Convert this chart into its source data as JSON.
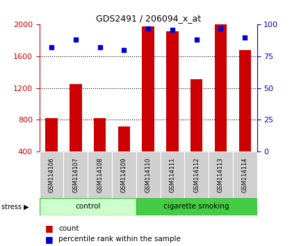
{
  "title": "GDS2491 / 206094_x_at",
  "samples": [
    "GSM114106",
    "GSM114107",
    "GSM114108",
    "GSM114109",
    "GSM114110",
    "GSM114111",
    "GSM114112",
    "GSM114113",
    "GSM114114"
  ],
  "counts": [
    820,
    1250,
    820,
    710,
    1980,
    1920,
    1310,
    2000,
    1680
  ],
  "percentiles": [
    82,
    88,
    82,
    80,
    97,
    96,
    88,
    97,
    90
  ],
  "groups": [
    {
      "label": "control",
      "start": 0,
      "end": 4,
      "color": "#ccffcc",
      "border": "#44bb44"
    },
    {
      "label": "cigarette smoking",
      "start": 4,
      "end": 9,
      "color": "#44cc44",
      "border": "#44bb44"
    }
  ],
  "bar_color": "#cc0000",
  "dot_color": "#0000cc",
  "ylim_left": [
    400,
    2000
  ],
  "ylim_right": [
    0,
    100
  ],
  "yticks_left": [
    400,
    800,
    1200,
    1600,
    2000
  ],
  "yticks_right": [
    0,
    25,
    50,
    75,
    100
  ],
  "grid_values": [
    800,
    1200,
    1600
  ],
  "left_axis_color": "#cc0000",
  "right_axis_color": "#0000cc",
  "bar_width": 0.5,
  "stress_label": "stress ▶",
  "legend_count_label": "count",
  "legend_pct_label": "percentile rank within the sample"
}
